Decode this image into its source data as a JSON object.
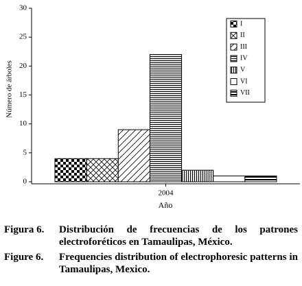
{
  "chart_data": {
    "type": "bar",
    "categories": [
      "2004"
    ],
    "series": [
      {
        "name": "I",
        "pattern": "checker",
        "values": [
          4
        ]
      },
      {
        "name": "II",
        "pattern": "crosshatch",
        "values": [
          4
        ]
      },
      {
        "name": "III",
        "pattern": "diagonal",
        "values": [
          9
        ]
      },
      {
        "name": "IV",
        "pattern": "horizontal",
        "values": [
          22
        ]
      },
      {
        "name": "V",
        "pattern": "vertical",
        "values": [
          2
        ]
      },
      {
        "name": "VI",
        "pattern": "blank",
        "values": [
          1
        ]
      },
      {
        "name": "VII",
        "pattern": "horizontal-thick",
        "values": [
          1
        ]
      }
    ],
    "ylim": [
      0,
      30
    ],
    "yticks": [
      0,
      5,
      10,
      15,
      20,
      25,
      30
    ],
    "ylabel": "Número de árboles",
    "xlabel": "Año",
    "color": "#000000"
  },
  "captions": [
    {
      "label": "Figura 6.",
      "text": "Distribución de frecuencias de los patrones electroforéticos en Tamaulipas, México."
    },
    {
      "label": "Figure 6.",
      "text": "Frequencies distribution of electrophoresic patterns in Tamaulipas, Mexico."
    }
  ]
}
